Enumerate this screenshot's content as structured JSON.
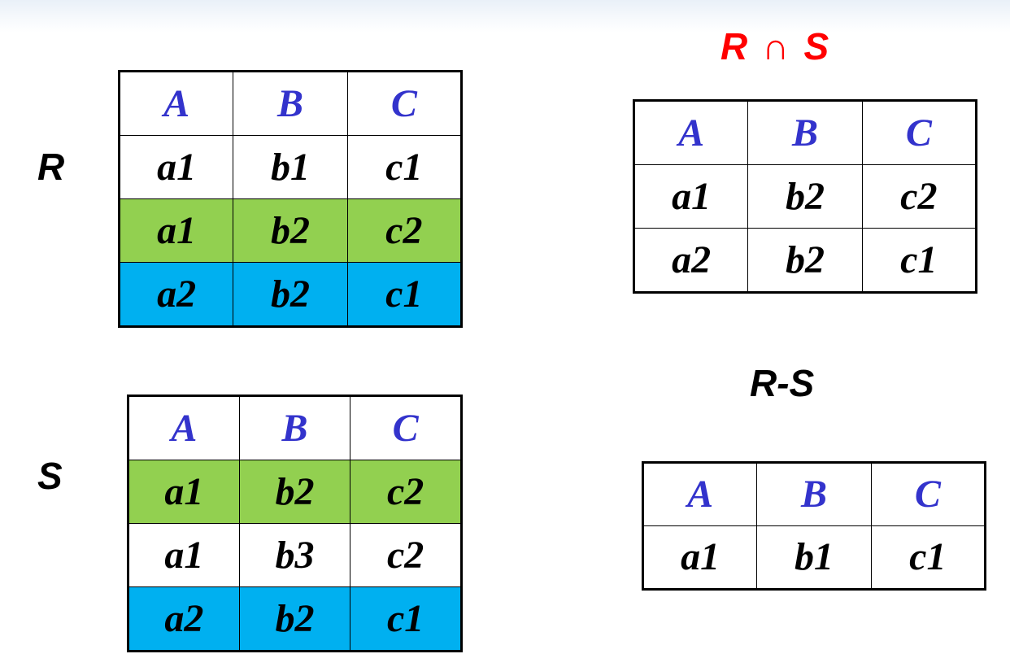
{
  "relations": {
    "r": {
      "label": "R",
      "headers": [
        "A",
        "B",
        "C"
      ],
      "rows": [
        {
          "cells": [
            "a1",
            "b1",
            "c1"
          ],
          "highlight": "none"
        },
        {
          "cells": [
            "a1",
            "b2",
            "c2"
          ],
          "highlight": "green"
        },
        {
          "cells": [
            "a2",
            "b2",
            "c1"
          ],
          "highlight": "blue"
        }
      ]
    },
    "s": {
      "label": "S",
      "headers": [
        "A",
        "B",
        "C"
      ],
      "rows": [
        {
          "cells": [
            "a1",
            "b2",
            "c2"
          ],
          "highlight": "green"
        },
        {
          "cells": [
            "a1",
            "b3",
            "c2"
          ],
          "highlight": "none"
        },
        {
          "cells": [
            "a2",
            "b2",
            "c1"
          ],
          "highlight": "blue"
        }
      ]
    },
    "intersection": {
      "label_left": "R",
      "operator": "∩",
      "label_right": "S",
      "headers": [
        "A",
        "B",
        "C"
      ],
      "rows": [
        {
          "cells": [
            "a1",
            "b2",
            "c2"
          ],
          "highlight": "none"
        },
        {
          "cells": [
            "a2",
            "b2",
            "c1"
          ],
          "highlight": "none"
        }
      ]
    },
    "difference": {
      "label": "R-S",
      "headers": [
        "A",
        "B",
        "C"
      ],
      "rows": [
        {
          "cells": [
            "a1",
            "b1",
            "c1"
          ],
          "highlight": "none"
        }
      ]
    }
  },
  "colors": {
    "header_text": "#3333cc",
    "highlight_green": "#92d050",
    "highlight_blue": "#00b0f0",
    "intersection_label": "#ff0000"
  }
}
